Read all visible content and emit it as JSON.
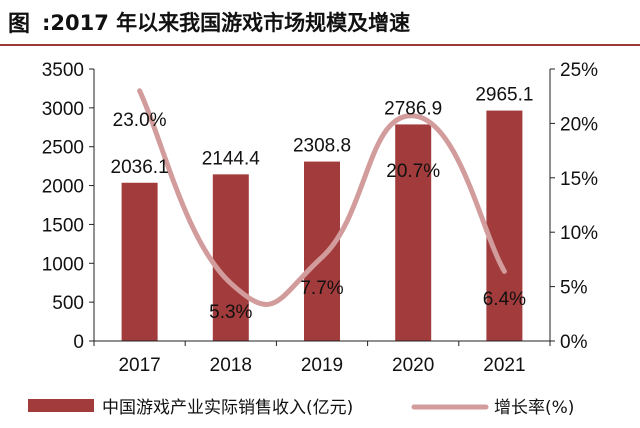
{
  "header": {
    "prefix": "图",
    "title": ":2017 年以来我国游戏市场规模及增速"
  },
  "colors": {
    "bar": "#a23b3b",
    "line": "#d29c9c",
    "rule": "#9b3a38"
  },
  "chart_data": {
    "type": "bar",
    "categories": [
      "2017",
      "2018",
      "2019",
      "2020",
      "2021"
    ],
    "series": [
      {
        "name": "中国游戏产业实际销售收入(亿元)",
        "type": "bar",
        "axis": "left",
        "values": [
          2036.1,
          2144.4,
          2308.8,
          2786.9,
          2965.1
        ],
        "labels": [
          "2036.1",
          "2144.4",
          "2308.8",
          "2786.9",
          "2965.1"
        ]
      },
      {
        "name": "增长率(%)",
        "type": "line",
        "smooth": true,
        "axis": "right",
        "values": [
          23.0,
          5.3,
          7.7,
          20.7,
          6.4
        ],
        "labels": [
          "23.0%",
          "5.3%",
          "7.7%",
          "20.7%",
          "6.4%"
        ]
      }
    ],
    "left_axis": {
      "ylim": [
        0,
        3500
      ],
      "ticks": [
        0,
        500,
        1000,
        1500,
        2000,
        2500,
        3000,
        3500
      ],
      "tick_labels": [
        "0",
        "500",
        "1000",
        "1500",
        "2000",
        "2500",
        "3000",
        "3500"
      ]
    },
    "right_axis": {
      "ylim": [
        0,
        25
      ],
      "ticks": [
        0,
        5,
        10,
        15,
        20,
        25
      ],
      "tick_labels": [
        "0%",
        "5%",
        "10%",
        "15%",
        "20%",
        "25%"
      ]
    },
    "grid": false,
    "legend": "bottom"
  }
}
